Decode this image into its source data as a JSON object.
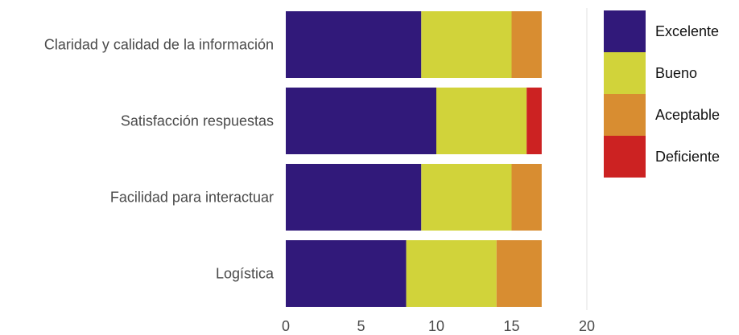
{
  "chart_data": {
    "type": "bar",
    "orientation": "horizontal",
    "stacked": true,
    "title": "",
    "xlabel": "",
    "ylabel": "",
    "categories": [
      "Claridad y calidad de la información",
      "Satisfacción respuestas",
      "Facilidad para interactuar",
      "Logística"
    ],
    "series": [
      {
        "name": "Excelente",
        "color": "#31197a",
        "values": [
          9,
          10,
          9,
          8
        ]
      },
      {
        "name": "Bueno",
        "color": "#d1d33a",
        "values": [
          6,
          6,
          6,
          6
        ]
      },
      {
        "name": "Aceptable",
        "color": "#d88d31",
        "values": [
          2,
          0,
          2,
          3
        ]
      },
      {
        "name": "Deficiente",
        "color": "#cc2222",
        "values": [
          0,
          1,
          0,
          0
        ]
      }
    ],
    "xlim": [
      0,
      20
    ],
    "xticks": [
      "0",
      "5",
      "10",
      "15",
      "20"
    ],
    "grid": "vertical lines at 20",
    "legend_position": "right"
  }
}
